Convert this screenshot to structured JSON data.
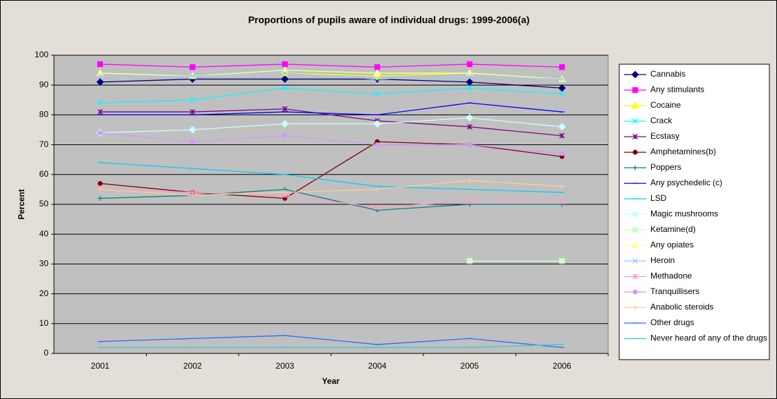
{
  "chart_data": {
    "type": "line",
    "title": "Proportions of pupils aware of individual drugs: 1999-2006(a)",
    "x_label": "Year",
    "y_label": "Percent",
    "categories": [
      "2001",
      "2002",
      "2003",
      "2004",
      "2005",
      "2006"
    ],
    "ylim": [
      0,
      100
    ],
    "yticks": [
      0,
      10,
      20,
      30,
      40,
      50,
      60,
      70,
      80,
      90,
      100
    ],
    "grid": true,
    "legend": "right",
    "series": [
      {
        "name": "Cannabis",
        "color": "#000080",
        "marker": "diamond",
        "values": [
          91,
          92,
          92,
          92,
          91,
          89
        ]
      },
      {
        "name": "Any stimulants",
        "color": "#ff00ff",
        "marker": "square",
        "values": [
          97,
          96,
          97,
          96,
          97,
          96
        ]
      },
      {
        "name": "Cocaine",
        "color": "#ffff00",
        "marker": "triangle",
        "values": [
          94,
          93,
          94,
          93,
          94,
          92
        ]
      },
      {
        "name": "Crack",
        "color": "#00ffff",
        "marker": "x",
        "values": [
          84,
          85,
          89,
          87,
          89,
          87
        ]
      },
      {
        "name": "Ecstasy",
        "color": "#800080",
        "marker": "star",
        "values": [
          81,
          81,
          82,
          78,
          76,
          73
        ]
      },
      {
        "name": "Amphetamines(b)",
        "color": "#800000",
        "marker": "circle",
        "values": [
          57,
          54,
          52,
          71,
          70,
          66
        ]
      },
      {
        "name": "Poppers",
        "color": "#008080",
        "marker": "plus",
        "values": [
          52,
          53,
          55,
          48,
          50,
          50
        ]
      },
      {
        "name": "Any psychedelic (c)",
        "color": "#0000ff",
        "marker": "dash",
        "values": [
          80,
          80,
          81,
          80,
          84,
          81
        ]
      },
      {
        "name": "LSD",
        "color": "#00ccff",
        "marker": "dash",
        "values": [
          64,
          62,
          60,
          56,
          55,
          54
        ]
      },
      {
        "name": "Magic mushrooms",
        "color": "#ccffff",
        "marker": "diamond",
        "values": [
          74,
          75,
          77,
          77,
          79,
          76
        ]
      },
      {
        "name": "Ketamine(d)",
        "color": "#ccffcc",
        "marker": "square",
        "values": [
          null,
          null,
          null,
          null,
          31,
          31
        ]
      },
      {
        "name": "Any opiates",
        "color": "#ffff99",
        "marker": "triangle",
        "values": [
          94,
          93,
          95,
          94,
          94,
          92
        ]
      },
      {
        "name": "Heroin",
        "color": "#99ccff",
        "marker": "x",
        "values": [
          93,
          93,
          94,
          92,
          93,
          92
        ]
      },
      {
        "name": "Methadone",
        "color": "#ff99cc",
        "marker": "star",
        "values": [
          55,
          54,
          53,
          49,
          51,
          51
        ]
      },
      {
        "name": "Tranquillisers",
        "color": "#cc99ff",
        "marker": "circle",
        "values": [
          74,
          71,
          73,
          70,
          70,
          67
        ]
      },
      {
        "name": "Anabolic steroids",
        "color": "#ffcc99",
        "marker": "plus",
        "values": [
          55,
          53,
          54,
          55,
          58,
          56
        ]
      },
      {
        "name": "Other drugs",
        "color": "#3366ff",
        "marker": "dash",
        "values": [
          4,
          5,
          6,
          3,
          5,
          2
        ]
      },
      {
        "name": "Never heard of any of the drugs",
        "color": "#33cccc",
        "marker": "dash",
        "values": [
          2,
          2,
          2,
          2,
          2,
          3
        ]
      }
    ]
  }
}
